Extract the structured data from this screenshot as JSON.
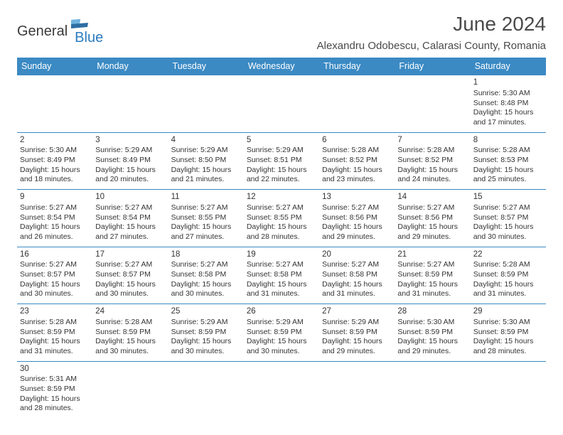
{
  "brand": {
    "text_dark": "General",
    "text_blue": "Blue",
    "flag_color_dark": "#2d6ea3",
    "flag_color_light": "#6fb3e0"
  },
  "header": {
    "month_title": "June 2024",
    "location": "Alexandru Odobescu, Calarasi County, Romania"
  },
  "colors": {
    "header_bg": "#3b8ac4",
    "header_text": "#ffffff",
    "cell_border": "#3b8ac4",
    "body_text": "#333333",
    "title_text": "#4a4a4a",
    "page_bg": "#ffffff"
  },
  "typography": {
    "month_title_fontsize": 28,
    "location_fontsize": 15,
    "dayheader_fontsize": 12.5,
    "daynum_fontsize": 11.5,
    "cell_fontsize": 10.5,
    "logo_fontsize": 20
  },
  "day_headers": [
    "Sunday",
    "Monday",
    "Tuesday",
    "Wednesday",
    "Thursday",
    "Friday",
    "Saturday"
  ],
  "weeks": [
    [
      null,
      null,
      null,
      null,
      null,
      null,
      {
        "n": "1",
        "sunrise": "5:30 AM",
        "sunset": "8:48 PM",
        "daylight": "15 hours and 17 minutes."
      }
    ],
    [
      {
        "n": "2",
        "sunrise": "5:30 AM",
        "sunset": "8:49 PM",
        "daylight": "15 hours and 18 minutes."
      },
      {
        "n": "3",
        "sunrise": "5:29 AM",
        "sunset": "8:49 PM",
        "daylight": "15 hours and 20 minutes."
      },
      {
        "n": "4",
        "sunrise": "5:29 AM",
        "sunset": "8:50 PM",
        "daylight": "15 hours and 21 minutes."
      },
      {
        "n": "5",
        "sunrise": "5:29 AM",
        "sunset": "8:51 PM",
        "daylight": "15 hours and 22 minutes."
      },
      {
        "n": "6",
        "sunrise": "5:28 AM",
        "sunset": "8:52 PM",
        "daylight": "15 hours and 23 minutes."
      },
      {
        "n": "7",
        "sunrise": "5:28 AM",
        "sunset": "8:52 PM",
        "daylight": "15 hours and 24 minutes."
      },
      {
        "n": "8",
        "sunrise": "5:28 AM",
        "sunset": "8:53 PM",
        "daylight": "15 hours and 25 minutes."
      }
    ],
    [
      {
        "n": "9",
        "sunrise": "5:27 AM",
        "sunset": "8:54 PM",
        "daylight": "15 hours and 26 minutes."
      },
      {
        "n": "10",
        "sunrise": "5:27 AM",
        "sunset": "8:54 PM",
        "daylight": "15 hours and 27 minutes."
      },
      {
        "n": "11",
        "sunrise": "5:27 AM",
        "sunset": "8:55 PM",
        "daylight": "15 hours and 27 minutes."
      },
      {
        "n": "12",
        "sunrise": "5:27 AM",
        "sunset": "8:55 PM",
        "daylight": "15 hours and 28 minutes."
      },
      {
        "n": "13",
        "sunrise": "5:27 AM",
        "sunset": "8:56 PM",
        "daylight": "15 hours and 29 minutes."
      },
      {
        "n": "14",
        "sunrise": "5:27 AM",
        "sunset": "8:56 PM",
        "daylight": "15 hours and 29 minutes."
      },
      {
        "n": "15",
        "sunrise": "5:27 AM",
        "sunset": "8:57 PM",
        "daylight": "15 hours and 30 minutes."
      }
    ],
    [
      {
        "n": "16",
        "sunrise": "5:27 AM",
        "sunset": "8:57 PM",
        "daylight": "15 hours and 30 minutes."
      },
      {
        "n": "17",
        "sunrise": "5:27 AM",
        "sunset": "8:57 PM",
        "daylight": "15 hours and 30 minutes."
      },
      {
        "n": "18",
        "sunrise": "5:27 AM",
        "sunset": "8:58 PM",
        "daylight": "15 hours and 30 minutes."
      },
      {
        "n": "19",
        "sunrise": "5:27 AM",
        "sunset": "8:58 PM",
        "daylight": "15 hours and 31 minutes."
      },
      {
        "n": "20",
        "sunrise": "5:27 AM",
        "sunset": "8:58 PM",
        "daylight": "15 hours and 31 minutes."
      },
      {
        "n": "21",
        "sunrise": "5:27 AM",
        "sunset": "8:59 PM",
        "daylight": "15 hours and 31 minutes."
      },
      {
        "n": "22",
        "sunrise": "5:28 AM",
        "sunset": "8:59 PM",
        "daylight": "15 hours and 31 minutes."
      }
    ],
    [
      {
        "n": "23",
        "sunrise": "5:28 AM",
        "sunset": "8:59 PM",
        "daylight": "15 hours and 31 minutes."
      },
      {
        "n": "24",
        "sunrise": "5:28 AM",
        "sunset": "8:59 PM",
        "daylight": "15 hours and 30 minutes."
      },
      {
        "n": "25",
        "sunrise": "5:29 AM",
        "sunset": "8:59 PM",
        "daylight": "15 hours and 30 minutes."
      },
      {
        "n": "26",
        "sunrise": "5:29 AM",
        "sunset": "8:59 PM",
        "daylight": "15 hours and 30 minutes."
      },
      {
        "n": "27",
        "sunrise": "5:29 AM",
        "sunset": "8:59 PM",
        "daylight": "15 hours and 29 minutes."
      },
      {
        "n": "28",
        "sunrise": "5:30 AM",
        "sunset": "8:59 PM",
        "daylight": "15 hours and 29 minutes."
      },
      {
        "n": "29",
        "sunrise": "5:30 AM",
        "sunset": "8:59 PM",
        "daylight": "15 hours and 28 minutes."
      }
    ],
    [
      {
        "n": "30",
        "sunrise": "5:31 AM",
        "sunset": "8:59 PM",
        "daylight": "15 hours and 28 minutes."
      },
      null,
      null,
      null,
      null,
      null,
      null
    ]
  ],
  "labels": {
    "sunrise_prefix": "Sunrise: ",
    "sunset_prefix": "Sunset: ",
    "daylight_prefix": "Daylight: "
  }
}
